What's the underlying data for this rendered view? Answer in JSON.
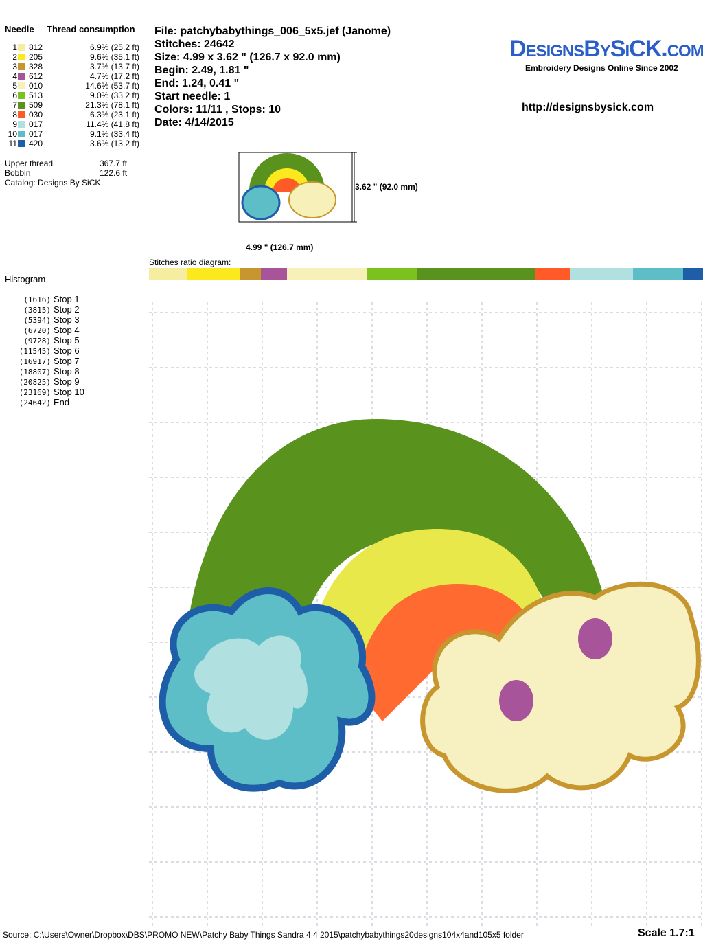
{
  "thread_table": {
    "header_needle": "Needle",
    "header_consumption": "Thread consumption",
    "rows": [
      {
        "n": "1",
        "code": "812",
        "pct": "6.9% (25.2 ft)",
        "color": "#f5eda0",
        "ratio": 6.9
      },
      {
        "n": "2",
        "code": "205",
        "pct": "9.6% (35.1 ft)",
        "color": "#fbe91e",
        "ratio": 9.6
      },
      {
        "n": "3",
        "code": "328",
        "pct": "3.7% (13.7 ft)",
        "color": "#c8962e",
        "ratio": 3.7
      },
      {
        "n": "4",
        "code": "612",
        "pct": "4.7% (17.2 ft)",
        "color": "#a8549a",
        "ratio": 4.7
      },
      {
        "n": "5",
        "code": "010",
        "pct": "14.6% (53.7 ft)",
        "color": "#f7f0b8",
        "ratio": 14.6
      },
      {
        "n": "6",
        "code": "513",
        "pct": "9.0% (33.2 ft)",
        "color": "#7cc21e",
        "ratio": 9.0
      },
      {
        "n": "7",
        "code": "509",
        "pct": "21.3% (78.1 ft)",
        "color": "#5a921e",
        "ratio": 21.3
      },
      {
        "n": "8",
        "code": "030",
        "pct": "6.3% (23.1 ft)",
        "color": "#ff5a28",
        "ratio": 6.3
      },
      {
        "n": "9",
        "code": "017",
        "pct": "11.4% (41.8 ft)",
        "color": "#b0e0e0",
        "ratio": 11.4
      },
      {
        "n": "10",
        "code": "017",
        "pct": "9.1% (33.4 ft)",
        "color": "#5ebec8",
        "ratio": 9.1
      },
      {
        "n": "11",
        "code": "420",
        "pct": "3.6% (13.2 ft)",
        "color": "#1e5ea8",
        "ratio": 3.6
      }
    ]
  },
  "totals": {
    "upper_label": "Upper thread",
    "upper_value": "367.7 ft",
    "bobbin_label": "Bobbin",
    "bobbin_value": "122.6 ft",
    "catalog": "Catalog: Designs By SiCK"
  },
  "info": [
    "File: patchybabythings_006_5x5.jef  (Janome)",
    "Stitches: 24642",
    "Size: 4.99 x 3.62 \" (126.7 x 92.0 mm)",
    "Begin: 2.49, 1.81 \"",
    "End: 1.24, 0.41 \"",
    "Start needle: 1",
    "Colors: 11/11 , Stops: 10",
    "Date: 4/14/2015"
  ],
  "brand": {
    "logo": "DesignsBySiCK.com",
    "tagline": "Embroidery Designs Online Since 2002",
    "url": "http://designsbysick.com"
  },
  "thumb": {
    "height_label": "3.62 \" (92.0 mm)",
    "width_label": "4.99 \" (126.7 mm)"
  },
  "ratio_label": "Stitches ratio diagram:",
  "histogram": {
    "title": "Histogram",
    "rows": [
      {
        "count": "(1616)",
        "label": "Stop 1"
      },
      {
        "count": "(3815)",
        "label": "Stop 2"
      },
      {
        "count": "(5394)",
        "label": "Stop 3"
      },
      {
        "count": "(6720)",
        "label": "Stop 4"
      },
      {
        "count": "(9728)",
        "label": "Stop 5"
      },
      {
        "count": "(11545)",
        "label": "Stop 6"
      },
      {
        "count": "(16917)",
        "label": "Stop 7"
      },
      {
        "count": "(18807)",
        "label": "Stop 8"
      },
      {
        "count": "(20825)",
        "label": "Stop 9"
      },
      {
        "count": "(23169)",
        "label": "Stop 10"
      },
      {
        "count": "(24642)",
        "label": "End"
      }
    ]
  },
  "footer": {
    "source": "Source: C:\\Users\\Owner\\Dropbox\\DBS\\PROMO NEW\\Patchy Baby Things Sandra 4 4 2015\\patchybabythings20designs104x4and105x5 folder",
    "scale": "Scale 1.7:1"
  }
}
